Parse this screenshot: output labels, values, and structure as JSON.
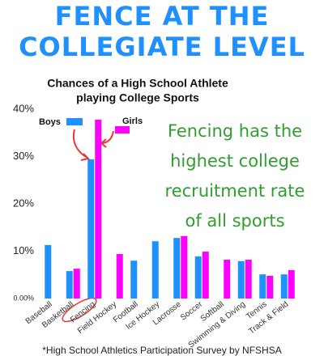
{
  "chart_data": {
    "type": "bar",
    "title": [
      "FENCE AT THE",
      "COLLEGIATE LEVEL"
    ],
    "subtitle": [
      "Chances of a High School Athlete",
      "playing College Sports"
    ],
    "annotation": [
      "Fencing has the",
      "highest college",
      "recruitment rate",
      "of all sports"
    ],
    "footnote": "*High School Athletics Participation Survey by NFSHSA",
    "categories": [
      "Baseball",
      "Basketball",
      "Fencing",
      "Field Hockey",
      "Football",
      "Ice Hockey",
      "Lacrosse",
      "Soccer",
      "Softball",
      "Swimming & Diving",
      "Tennis",
      "Track & Field"
    ],
    "series": [
      {
        "name": "Boys",
        "color": "#1e90ff",
        "values": [
          11.3,
          5.8,
          29.4,
          null,
          8.0,
          12.1,
          12.8,
          8.9,
          null,
          7.9,
          5.1,
          5.1
        ]
      },
      {
        "name": "Girls",
        "color": "#ff00ff",
        "values": [
          null,
          6.3,
          37.8,
          9.4,
          null,
          null,
          13.2,
          9.9,
          8.2,
          8.2,
          4.8,
          6.0
        ]
      }
    ],
    "ylim": [
      0,
      40
    ],
    "yticks": [
      {
        "value": 0,
        "label": "0.00%"
      },
      {
        "value": 10,
        "label": "10%"
      },
      {
        "value": 20,
        "label": "20%"
      },
      {
        "value": 30,
        "label": "30%"
      },
      {
        "value": 40,
        "label": "40%"
      }
    ],
    "grid": false
  }
}
